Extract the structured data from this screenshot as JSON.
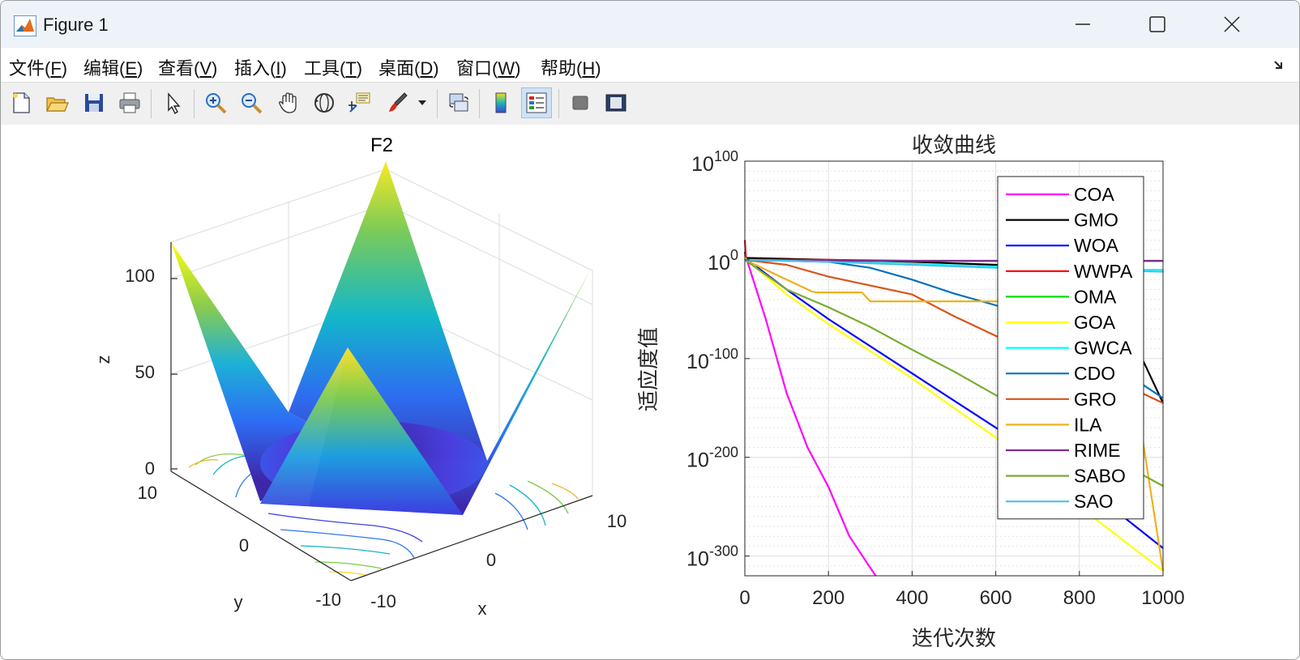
{
  "window": {
    "title": "Figure 1",
    "controls": [
      "minimize",
      "maximize",
      "close"
    ]
  },
  "menu": [
    {
      "label": "文件(",
      "key": "F",
      "tail": ")"
    },
    {
      "label": "编辑(",
      "key": "E",
      "tail": ")"
    },
    {
      "label": "查看(",
      "key": "V",
      "tail": ")"
    },
    {
      "label": "插入(",
      "key": "I",
      "tail": ")"
    },
    {
      "label": "工具(",
      "key": "T",
      "tail": ")"
    },
    {
      "label": "桌面(",
      "key": "D",
      "tail": ")"
    },
    {
      "label": "窗口(",
      "key": "W",
      "tail": ")"
    },
    {
      "label": "帮助(",
      "key": "H",
      "tail": ")"
    }
  ],
  "toolbar": {
    "items": [
      "new-figure-icon",
      "open-file-icon",
      "save-icon",
      "print-icon",
      "pointer-icon",
      "zoom-in-icon",
      "zoom-out-icon",
      "pan-icon",
      "rotate-3d-icon",
      "data-tips-icon",
      "brush-icon",
      "link-plot-icon",
      "colorbar-icon",
      "legend-icon",
      "hide-plot-tools-icon",
      "show-plot-tools-icon"
    ],
    "active": "legend-icon"
  },
  "surface_plot": {
    "title": "F2",
    "xlabel": "x",
    "ylabel": "y",
    "zlabel": "z",
    "z_ticks": [
      "0",
      "50",
      "100"
    ],
    "x_ticks": [
      "-10",
      "0",
      "10"
    ],
    "y_ticks": [
      "-10",
      "0",
      "10"
    ],
    "zlim": [
      0,
      120
    ],
    "colormap": "parula"
  },
  "chart_data": {
    "type": "line",
    "title": "收敛曲线",
    "xlabel": "迭代次数",
    "ylabel": "适应度值",
    "xlim": [
      0,
      1000
    ],
    "y_scale": "log10",
    "ylim_exponent": [
      -320,
      100
    ],
    "x_ticks": [
      "0",
      "200",
      "400",
      "600",
      "800",
      "1000"
    ],
    "y_ticks": [
      {
        "base": "10",
        "exp": "100"
      },
      {
        "base": "10",
        "exp": "0"
      },
      {
        "base": "10",
        "exp": "-100"
      },
      {
        "base": "10",
        "exp": "-200"
      },
      {
        "base": "10",
        "exp": "-300"
      }
    ],
    "grid": true,
    "legend_position": "top-right",
    "series": [
      {
        "name": "COA",
        "color": "#ff00ff",
        "x": [
          0,
          5,
          20,
          50,
          100,
          150,
          200,
          250,
          300,
          313
        ],
        "log10_y": [
          5,
          0,
          -20,
          -60,
          -135,
          -190,
          -230,
          -280,
          -312,
          -320
        ]
      },
      {
        "name": "GMO",
        "color": "#000000",
        "x": [
          0,
          2,
          200,
          400,
          600,
          700,
          800,
          900,
          950,
          1000
        ],
        "log10_y": [
          8,
          2,
          0,
          -2,
          -5,
          -5,
          -6,
          -60,
          -100,
          -145
        ]
      },
      {
        "name": "WOA",
        "color": "#0000ff",
        "x": [
          0,
          100,
          200,
          400,
          600,
          800,
          1000
        ],
        "log10_y": [
          2,
          -30,
          -60,
          -115,
          -170,
          -225,
          -292
        ]
      },
      {
        "name": "WWPA",
        "color": "#ff0000",
        "x": [
          0,
          3,
          200,
          400,
          600,
          800,
          1000
        ],
        "log10_y": [
          20,
          0,
          0,
          -1,
          -1,
          -1,
          -1
        ]
      },
      {
        "name": "OMA",
        "color": "#00dd00",
        "x": [
          0,
          200,
          400,
          600,
          800,
          1000
        ],
        "log10_y": [
          0,
          -1,
          -1,
          -1,
          -1,
          -1
        ]
      },
      {
        "name": "GOA",
        "color": "#ffff00",
        "x": [
          0,
          100,
          200,
          400,
          600,
          800,
          1000
        ],
        "log10_y": [
          2,
          -35,
          -65,
          -120,
          -180,
          -250,
          -315
        ]
      },
      {
        "name": "GWCA",
        "color": "#00ffff",
        "x": [
          0,
          200,
          400,
          600,
          800,
          1000
        ],
        "log10_y": [
          0,
          -2,
          -4,
          -7,
          -10,
          -10
        ]
      },
      {
        "name": "CDO",
        "color": "#0072bd",
        "x": [
          0,
          200,
          300,
          400,
          500,
          600,
          700,
          800,
          900,
          1000
        ],
        "log10_y": [
          0,
          -2,
          -8,
          -20,
          -34,
          -46,
          -62,
          -85,
          -112,
          -140
        ]
      },
      {
        "name": "GRO",
        "color": "#d95319",
        "x": [
          0,
          100,
          200,
          300,
          400,
          500,
          600,
          700,
          800,
          900,
          1000
        ],
        "log10_y": [
          0,
          -5,
          -17,
          -26,
          -35,
          -57,
          -77,
          -95,
          -110,
          -125,
          -145
        ]
      },
      {
        "name": "ILA",
        "color": "#edb120",
        "x": [
          0,
          160,
          170,
          280,
          300,
          700,
          900,
          1000
        ],
        "log10_y": [
          0,
          -32,
          -33,
          -33,
          -42,
          -42,
          -42,
          -315
        ]
      },
      {
        "name": "RIME",
        "color": "#7e2f8e",
        "x": [
          0,
          200,
          400,
          600,
          800,
          1000
        ],
        "log10_y": [
          0,
          -1,
          -1,
          -1,
          -1,
          -1
        ]
      },
      {
        "name": "SABO",
        "color": "#77ac30",
        "x": [
          0,
          100,
          200,
          300,
          400,
          500,
          600,
          700,
          800,
          900,
          1000
        ],
        "log10_y": [
          0,
          -30,
          -48,
          -68,
          -91,
          -113,
          -137,
          -160,
          -183,
          -206,
          -229
        ]
      },
      {
        "name": "SAO",
        "color": "#4dbeee",
        "x": [
          0,
          200,
          400,
          600,
          800,
          1000
        ],
        "log10_y": [
          0,
          -2,
          -5,
          -8,
          -10,
          -12
        ]
      }
    ]
  }
}
